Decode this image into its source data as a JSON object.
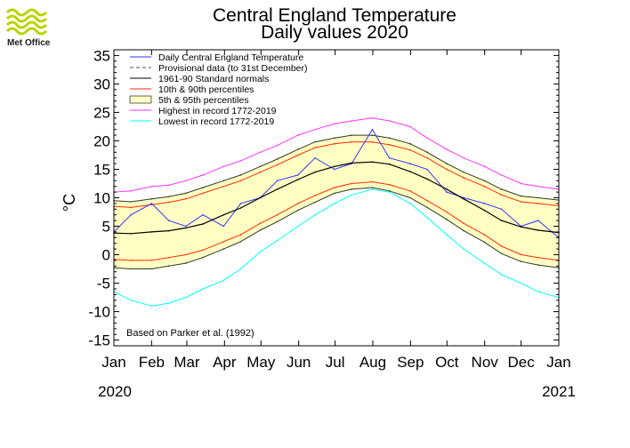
{
  "logo": {
    "text": "Met Office"
  },
  "chart_data": {
    "type": "line",
    "title": "Central England Temperature",
    "subtitle": "Daily values 2020",
    "ylabel": "°C",
    "xlabel": "",
    "ylim": [
      -16,
      36
    ],
    "yticks": [
      35,
      30,
      25,
      20,
      15,
      10,
      5,
      0,
      -5,
      -10,
      -15
    ],
    "x_tick_labels": [
      "Jan",
      "Feb",
      "Mar",
      "Apr",
      "May",
      "Jun",
      "Jul",
      "Aug",
      "Sep",
      "Oct",
      "Nov",
      "Dec",
      "Jan"
    ],
    "year_labels": [
      "2020",
      "2021"
    ],
    "annotation": "Based on Parker et al. (1992)",
    "grid": false,
    "legend_position": "top-left",
    "legend": [
      {
        "label": "Daily Central England Temperature",
        "style": "line",
        "color": "#3333ff"
      },
      {
        "label": "Provisional data (to 31st December)",
        "style": "dashed",
        "color": "#555555"
      },
      {
        "label": "1961-90 Standard normals",
        "style": "line",
        "color": "#000000"
      },
      {
        "label": "10th & 90th percentiles",
        "style": "line",
        "color": "#ff2a00"
      },
      {
        "label": "5th & 95th percentiles",
        "style": "fill",
        "color": "#ffffc4"
      },
      {
        "label": "Highest in record 1772-2019",
        "style": "line",
        "color": "#ff33ff"
      },
      {
        "label": "Lowest in record 1772-2019",
        "style": "line",
        "color": "#00ffff"
      }
    ],
    "colors": {
      "daily": "#3333ff",
      "normal": "#000000",
      "p10_90": "#ff2a00",
      "band_fill": "#ffffc4",
      "band_edge": "#2c3a1c",
      "highest": "#ff33ff",
      "lowest": "#00ffff"
    },
    "x_unit": "day of year",
    "x": [
      1,
      15,
      32,
      46,
      60,
      74,
      91,
      105,
      121,
      135,
      152,
      166,
      182,
      196,
      213,
      227,
      244,
      258,
      274,
      288,
      305,
      319,
      335,
      349,
      366
    ],
    "series": [
      {
        "name": "Highest in record 1772-2019",
        "key": "highest",
        "values": [
          11,
          11.2,
          12,
          12.2,
          13,
          14,
          15.5,
          16.5,
          18,
          19.2,
          21,
          22,
          23,
          23.5,
          24,
          23.5,
          22.5,
          20.5,
          18.5,
          17,
          15.5,
          14,
          12.5,
          12,
          11.5
        ]
      },
      {
        "name": "95th percentile",
        "key": "p95",
        "values": [
          9.5,
          9.3,
          9.8,
          10.2,
          10.8,
          11.8,
          13,
          14,
          15.5,
          16.8,
          18.5,
          19.8,
          20.5,
          21,
          21,
          20.5,
          19.5,
          18,
          16,
          14.5,
          13,
          11.5,
          10.3,
          10,
          9.6
        ]
      },
      {
        "name": "90th percentile",
        "key": "p90",
        "values": [
          8.5,
          8.3,
          8.8,
          9.2,
          9.8,
          10.8,
          12,
          13,
          14.5,
          15.8,
          17.5,
          18.8,
          19.5,
          19.8,
          19.8,
          19.3,
          18.4,
          17,
          15,
          13.5,
          12,
          10.5,
          9.3,
          9,
          8.6
        ]
      },
      {
        "name": "1961-90 Standard normals",
        "key": "normal",
        "values": [
          3.8,
          3.7,
          4.0,
          4.2,
          4.7,
          5.4,
          7.0,
          8.2,
          10,
          11.5,
          13.2,
          14.5,
          15.5,
          16.1,
          16.3,
          15.9,
          14.6,
          13.3,
          11.5,
          9.8,
          7.8,
          6.0,
          4.9,
          4.3,
          3.9
        ]
      },
      {
        "name": "10th percentile",
        "key": "p10",
        "values": [
          -0.8,
          -1.0,
          -1.0,
          -0.5,
          0,
          0.8,
          2.3,
          3.5,
          5.5,
          7.0,
          9.0,
          10.4,
          11.8,
          12.5,
          12.8,
          12.3,
          11.2,
          9.5,
          7.5,
          5.5,
          3.5,
          1.5,
          0,
          -0.5,
          -1.0
        ]
      },
      {
        "name": "5th percentile",
        "key": "p5",
        "values": [
          -2.3,
          -2.5,
          -2.5,
          -2.0,
          -1.5,
          -0.5,
          1.0,
          2.3,
          4.3,
          5.8,
          7.8,
          9.2,
          10.8,
          11.5,
          11.8,
          11.2,
          10.0,
          8.3,
          6.2,
          4.2,
          2.2,
          0.2,
          -1.2,
          -1.8,
          -2.3
        ]
      },
      {
        "name": "Lowest in record 1772-2019",
        "key": "lowest",
        "values": [
          -6.5,
          -8,
          -9,
          -8.5,
          -7.5,
          -6,
          -4.5,
          -2.5,
          0.5,
          2.5,
          5,
          7,
          9,
          10.5,
          11.5,
          11,
          9,
          6.5,
          3.5,
          1,
          -1.5,
          -3.5,
          -5,
          -6.5,
          -7.5
        ]
      },
      {
        "name": "Daily Central England Temperature",
        "key": "daily",
        "values": [
          4,
          7,
          9,
          6,
          5,
          7,
          5,
          9,
          10,
          13,
          14,
          17,
          15,
          16,
          22,
          17,
          16,
          15,
          11,
          10,
          9,
          8,
          5,
          6,
          3
        ]
      }
    ]
  }
}
